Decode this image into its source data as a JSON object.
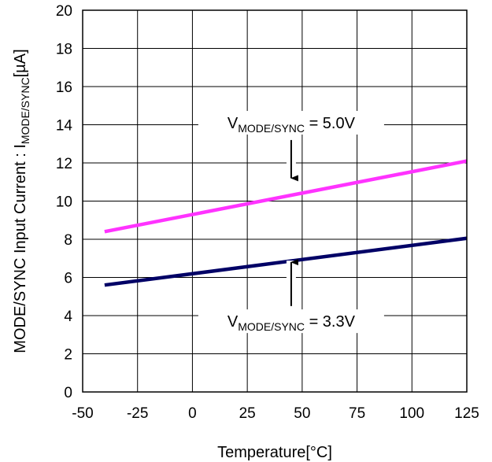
{
  "chart_data": {
    "type": "line",
    "title": "",
    "xlabel": "Temperature[°C]",
    "ylabel": {
      "prefix": "MODE/SYNC Input Current : I",
      "sub": "MODE/SYNC",
      "suffix": "[µA]"
    },
    "xlim": [
      -50,
      125
    ],
    "ylim": [
      0,
      20
    ],
    "x_ticks": [
      "-50",
      "-25",
      "0",
      "25",
      "50",
      "75",
      "100",
      "125"
    ],
    "y_ticks": [
      "0",
      "2",
      "4",
      "6",
      "8",
      "10",
      "12",
      "14",
      "16",
      "18",
      "20"
    ],
    "grid": true,
    "series": [
      {
        "x": [
          -40,
          125
        ],
        "y": [
          8.4,
          12.1
        ],
        "color": "#ff33ff"
      },
      {
        "x": [
          -40,
          125
        ],
        "y": [
          5.6,
          8.05
        ],
        "color": "#000066"
      }
    ],
    "annotations": [
      {
        "main": "V",
        "sub": "MODE/SYNC",
        "rest": " = 5.0V",
        "text_at": [
          45,
          13.9
        ],
        "arrow_from": [
          45,
          13.2
        ],
        "arrow_to": [
          45,
          11.2
        ]
      },
      {
        "main": "V",
        "sub": "MODE/SYNC",
        "rest": " = 3.3V",
        "text_at": [
          45,
          3.5
        ],
        "arrow_from": [
          45,
          4.5
        ],
        "arrow_to": [
          45,
          6.8
        ]
      }
    ]
  }
}
